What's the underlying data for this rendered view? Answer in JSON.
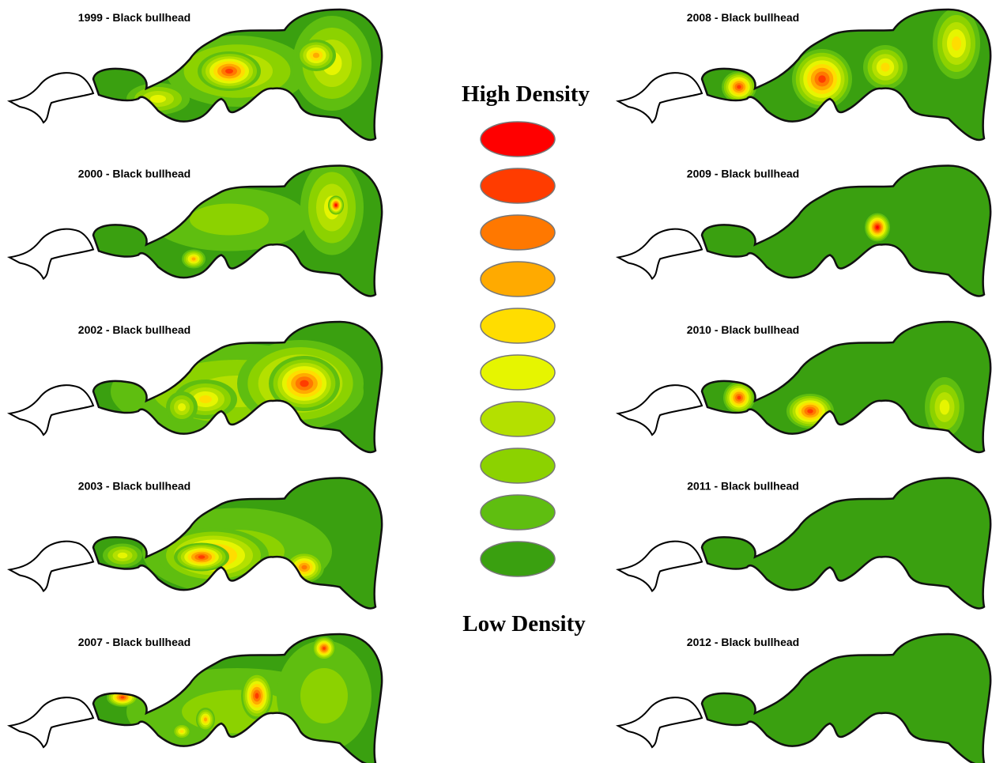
{
  "panels": [
    {
      "title": "1999 - Black bullhead"
    },
    {
      "title": "2000 - Black bullhead"
    },
    {
      "title": "2002 - Black bullhead"
    },
    {
      "title": "2003 - Black bullhead"
    },
    {
      "title": "2007 - Black bullhead"
    },
    {
      "title": "2008 - Black bullhead"
    },
    {
      "title": "2009 - Black bullhead"
    },
    {
      "title": "2010 - Black bullhead"
    },
    {
      "title": "2011 - Black bullhead"
    },
    {
      "title": "2012 - Black bullhead"
    }
  ],
  "legend": {
    "high": "High Density",
    "low": "Low Density",
    "colors": [
      "#ff0000",
      "#ff3c00",
      "#ff7800",
      "#ffaa00",
      "#ffdd00",
      "#e6f500",
      "#b4e000",
      "#8cd200",
      "#5fbe10",
      "#3aa010"
    ]
  }
}
